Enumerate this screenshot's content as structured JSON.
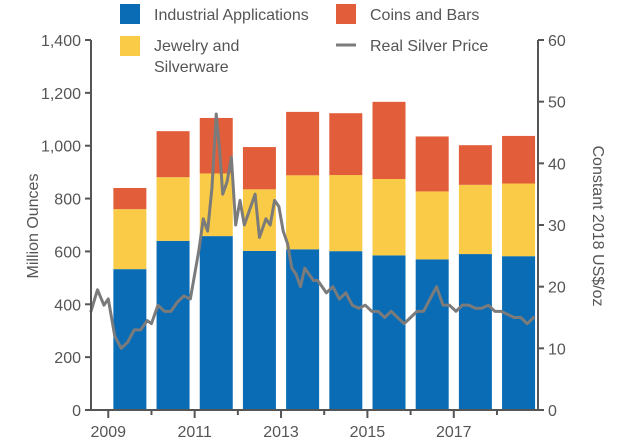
{
  "chart_data": {
    "type": "bar",
    "stacked": true,
    "categories": [
      "2009",
      "2010",
      "2011",
      "2012",
      "2013",
      "2014",
      "2015",
      "2016",
      "2017",
      "2018"
    ],
    "series": [
      {
        "name": "Industrial Applications",
        "color": "#0a6cb4",
        "values": [
          533,
          640,
          658,
          602,
          608,
          601,
          585,
          570,
          590,
          582
        ]
      },
      {
        "name": "Jewelry and Silverware",
        "color": "#f9cb46",
        "values": [
          227,
          241,
          237,
          233,
          280,
          288,
          289,
          257,
          262,
          275
        ]
      },
      {
        "name": "Coins and Bars",
        "color": "#e25e3b",
        "values": [
          80,
          174,
          210,
          160,
          240,
          234,
          292,
          208,
          150,
          180
        ]
      }
    ],
    "line_series": {
      "name": "Real Silver Price",
      "color": "#7b7b7b",
      "axis": "right",
      "x": [
        2008.6,
        2008.75,
        2008.9,
        2009.0,
        2009.15,
        2009.3,
        2009.45,
        2009.6,
        2009.75,
        2009.9,
        2010.0,
        2010.15,
        2010.3,
        2010.45,
        2010.6,
        2010.75,
        2010.9,
        2011.0,
        2011.1,
        2011.2,
        2011.3,
        2011.4,
        2011.5,
        2011.58,
        2011.65,
        2011.75,
        2011.85,
        2011.95,
        2012.05,
        2012.15,
        2012.25,
        2012.4,
        2012.5,
        2012.65,
        2012.75,
        2012.85,
        2012.95,
        2013.05,
        2013.15,
        2013.25,
        2013.35,
        2013.45,
        2013.55,
        2013.65,
        2013.75,
        2013.85,
        2013.95,
        2014.05,
        2014.2,
        2014.35,
        2014.5,
        2014.65,
        2014.8,
        2014.95,
        2015.1,
        2015.25,
        2015.4,
        2015.55,
        2015.7,
        2015.85,
        2016.0,
        2016.15,
        2016.3,
        2016.45,
        2016.6,
        2016.75,
        2016.9,
        2017.05,
        2017.2,
        2017.35,
        2017.5,
        2017.65,
        2017.8,
        2017.95,
        2018.1,
        2018.25,
        2018.4,
        2018.55,
        2018.7,
        2018.85
      ],
      "y": [
        16,
        19.5,
        17,
        18,
        12,
        10,
        11,
        13,
        13,
        14.5,
        14,
        17,
        16,
        16,
        17.5,
        18.5,
        18,
        22,
        26,
        31,
        29,
        36,
        48,
        42,
        35,
        37,
        41,
        30,
        34,
        30,
        32,
        35,
        28,
        31,
        30,
        34,
        33,
        29,
        27,
        23,
        22,
        20,
        23,
        22,
        21,
        21,
        20,
        19,
        20,
        18,
        19,
        17,
        16.5,
        17,
        16,
        16,
        15,
        16,
        15,
        14,
        15,
        16,
        16,
        18,
        20,
        17,
        17,
        16,
        17,
        17,
        16.5,
        16.5,
        17,
        16,
        16,
        15.5,
        15,
        15,
        14,
        15
      ]
    },
    "xlabel": "",
    "ylabel": "Million Ounces",
    "y2label": "Constant 2018 US$/oz",
    "ylim": [
      0,
      1400
    ],
    "y2lim": [
      0,
      60
    ],
    "yticks": [
      0,
      200,
      400,
      600,
      800,
      1000,
      1200,
      1400
    ],
    "yticklabels": [
      "0",
      "200",
      "400",
      "600",
      "800",
      "1,000",
      "1,200",
      "1,400"
    ],
    "y2ticks": [
      0,
      10,
      20,
      30,
      40,
      50,
      60
    ],
    "y2ticklabels": [
      "0",
      "10",
      "20",
      "30",
      "40",
      "50",
      "60"
    ],
    "xticks": [
      2009,
      2011,
      2013,
      2015,
      2017
    ],
    "xticklabels": [
      "2009",
      "2011",
      "2013",
      "2015",
      "2017"
    ],
    "xlim": [
      2008.6,
      2018.95
    ],
    "grid": false,
    "legend": [
      "Industrial Applications",
      "Coins and Bars",
      "Jewelry and Silverware",
      "Real Silver Price"
    ],
    "legend_position": "top"
  }
}
